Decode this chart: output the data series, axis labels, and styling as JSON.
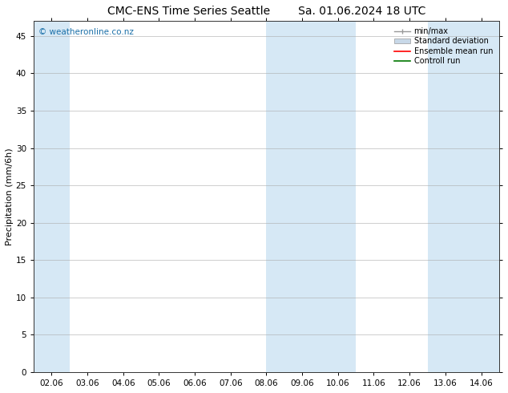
{
  "title_left": "CMC-ENS Time Series Seattle",
  "title_right": "Sa. 01.06.2024 18 UTC",
  "ylabel": "Precipitation (mm/6h)",
  "watermark": "© weatheronline.co.nz",
  "x_tick_labels": [
    "02.06",
    "03.06",
    "04.06",
    "05.06",
    "06.06",
    "07.06",
    "08.06",
    "09.06",
    "10.06",
    "11.06",
    "12.06",
    "13.06",
    "14.06"
  ],
  "x_tick_positions": [
    0,
    1,
    2,
    3,
    4,
    5,
    6,
    7,
    8,
    9,
    10,
    11,
    12
  ],
  "ylim": [
    0,
    47
  ],
  "yticks": [
    0,
    5,
    10,
    15,
    20,
    25,
    30,
    35,
    40,
    45
  ],
  "shaded_bands": [
    {
      "x_start": -0.5,
      "x_end": 0.5,
      "color": "#d6e8f5"
    },
    {
      "x_start": 6.0,
      "x_end": 7.5,
      "color": "#d6e8f5"
    },
    {
      "x_start": 7.5,
      "x_end": 8.5,
      "color": "#d6e8f5"
    },
    {
      "x_start": 10.5,
      "x_end": 11.5,
      "color": "#d6e8f5"
    },
    {
      "x_start": 11.5,
      "x_end": 12.5,
      "color": "#d6e8f5"
    }
  ],
  "bg_color": "#ffffff",
  "plot_bg_color": "#ffffff",
  "title_fontsize": 10,
  "axis_label_fontsize": 8,
  "tick_fontsize": 7.5,
  "watermark_color": "#1a6fa8",
  "grid_color": "#aaaaaa",
  "x_min": -0.5,
  "x_max": 12.5
}
